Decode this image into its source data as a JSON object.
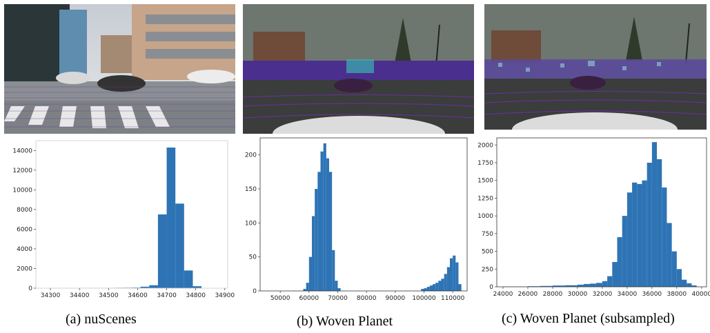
{
  "captions": {
    "a": "(a) nuScenes",
    "b": "(b) Woven Planet",
    "c": "(c) Woven Planet (subsampled)"
  },
  "colors": {
    "bar": "#2e74b5",
    "axis": "#333333"
  },
  "chart_data": [
    {
      "type": "bar",
      "panel": "a",
      "title": "",
      "xlabel": "",
      "ylabel": "",
      "xlim": [
        34250,
        34910
      ],
      "ylim": [
        0,
        15000
      ],
      "xticks": [
        34300,
        34400,
        34500,
        34600,
        34700,
        34800,
        34900
      ],
      "yticks": [
        0,
        2000,
        4000,
        6000,
        8000,
        10000,
        12000,
        14000
      ],
      "grid": false,
      "legend": "none",
      "bins": [
        {
          "x0": 34250,
          "x1": 34280,
          "y": 0
        },
        {
          "x0": 34280,
          "x1": 34310,
          "y": 5
        },
        {
          "x0": 34310,
          "x1": 34340,
          "y": 5
        },
        {
          "x0": 34340,
          "x1": 34370,
          "y": 8
        },
        {
          "x0": 34370,
          "x1": 34400,
          "y": 8
        },
        {
          "x0": 34400,
          "x1": 34430,
          "y": 10
        },
        {
          "x0": 34430,
          "x1": 34460,
          "y": 15
        },
        {
          "x0": 34460,
          "x1": 34490,
          "y": 20
        },
        {
          "x0": 34490,
          "x1": 34520,
          "y": 25
        },
        {
          "x0": 34520,
          "x1": 34550,
          "y": 40
        },
        {
          "x0": 34550,
          "x1": 34580,
          "y": 50
        },
        {
          "x0": 34580,
          "x1": 34610,
          "y": 60
        },
        {
          "x0": 34610,
          "x1": 34640,
          "y": 150
        },
        {
          "x0": 34640,
          "x1": 34670,
          "y": 300
        },
        {
          "x0": 34670,
          "x1": 34700,
          "y": 7500
        },
        {
          "x0": 34700,
          "x1": 34730,
          "y": 14300
        },
        {
          "x0": 34730,
          "x1": 34760,
          "y": 8600
        },
        {
          "x0": 34760,
          "x1": 34790,
          "y": 1800
        },
        {
          "x0": 34790,
          "x1": 34820,
          "y": 200
        },
        {
          "x0": 34820,
          "x1": 34850,
          "y": 0
        }
      ]
    },
    {
      "type": "bar",
      "panel": "b",
      "title": "",
      "xlabel": "",
      "ylabel": "",
      "xlim": [
        43000,
        115000
      ],
      "ylim": [
        0,
        225
      ],
      "xticks": [
        50000,
        60000,
        70000,
        80000,
        90000,
        100000,
        110000
      ],
      "yticks": [
        0,
        50,
        100,
        150,
        200
      ],
      "grid": false,
      "legend": "none",
      "bins": [
        {
          "x0": 58000,
          "x1": 59000,
          "y": 3
        },
        {
          "x0": 59000,
          "x1": 60000,
          "y": 12
        },
        {
          "x0": 60000,
          "x1": 61000,
          "y": 50
        },
        {
          "x0": 61000,
          "x1": 62000,
          "y": 110
        },
        {
          "x0": 62000,
          "x1": 63000,
          "y": 150
        },
        {
          "x0": 63000,
          "x1": 64000,
          "y": 175
        },
        {
          "x0": 64000,
          "x1": 65000,
          "y": 205
        },
        {
          "x0": 65000,
          "x1": 66000,
          "y": 217
        },
        {
          "x0": 66000,
          "x1": 67000,
          "y": 195
        },
        {
          "x0": 67000,
          "x1": 68000,
          "y": 175
        },
        {
          "x0": 68000,
          "x1": 69000,
          "y": 60
        },
        {
          "x0": 69000,
          "x1": 70000,
          "y": 15
        },
        {
          "x0": 70000,
          "x1": 71000,
          "y": 4
        },
        {
          "x0": 99000,
          "x1": 100000,
          "y": 3
        },
        {
          "x0": 100000,
          "x1": 101000,
          "y": 4
        },
        {
          "x0": 101000,
          "x1": 102000,
          "y": 6
        },
        {
          "x0": 102000,
          "x1": 103000,
          "y": 8
        },
        {
          "x0": 103000,
          "x1": 104000,
          "y": 10
        },
        {
          "x0": 104000,
          "x1": 105000,
          "y": 12
        },
        {
          "x0": 105000,
          "x1": 106000,
          "y": 15
        },
        {
          "x0": 106000,
          "x1": 107000,
          "y": 18
        },
        {
          "x0": 107000,
          "x1": 108000,
          "y": 25
        },
        {
          "x0": 108000,
          "x1": 109000,
          "y": 35
        },
        {
          "x0": 109000,
          "x1": 110000,
          "y": 48
        },
        {
          "x0": 110000,
          "x1": 111000,
          "y": 52
        },
        {
          "x0": 111000,
          "x1": 112000,
          "y": 42
        },
        {
          "x0": 112000,
          "x1": 113000,
          "y": 10
        }
      ]
    },
    {
      "type": "bar",
      "panel": "c",
      "title": "",
      "xlabel": "",
      "ylabel": "",
      "xlim": [
        23500,
        40400
      ],
      "ylim": [
        0,
        2100
      ],
      "xticks": [
        24000,
        26000,
        28000,
        30000,
        32000,
        34000,
        36000,
        38000,
        40000
      ],
      "yticks": [
        0,
        250,
        500,
        750,
        1000,
        1250,
        1500,
        1750,
        2000
      ],
      "grid": false,
      "legend": "none",
      "bins": [
        {
          "x0": 24000,
          "x1": 26000,
          "y": 3
        },
        {
          "x0": 26000,
          "x1": 27000,
          "y": 8
        },
        {
          "x0": 27000,
          "x1": 28000,
          "y": 12
        },
        {
          "x0": 28000,
          "x1": 29000,
          "y": 18
        },
        {
          "x0": 29000,
          "x1": 30000,
          "y": 22
        },
        {
          "x0": 30000,
          "x1": 30500,
          "y": 30
        },
        {
          "x0": 30500,
          "x1": 31000,
          "y": 40
        },
        {
          "x0": 31000,
          "x1": 31500,
          "y": 45
        },
        {
          "x0": 31500,
          "x1": 32000,
          "y": 55
        },
        {
          "x0": 32000,
          "x1": 32400,
          "y": 80
        },
        {
          "x0": 32400,
          "x1": 32800,
          "y": 150
        },
        {
          "x0": 32800,
          "x1": 33200,
          "y": 350
        },
        {
          "x0": 33200,
          "x1": 33600,
          "y": 700
        },
        {
          "x0": 33600,
          "x1": 34000,
          "y": 1000
        },
        {
          "x0": 34000,
          "x1": 34400,
          "y": 1330
        },
        {
          "x0": 34400,
          "x1": 34800,
          "y": 1470
        },
        {
          "x0": 34800,
          "x1": 35200,
          "y": 1450
        },
        {
          "x0": 35200,
          "x1": 35600,
          "y": 1500
        },
        {
          "x0": 35600,
          "x1": 36000,
          "y": 1750
        },
        {
          "x0": 36000,
          "x1": 36400,
          "y": 2040
        },
        {
          "x0": 36400,
          "x1": 36800,
          "y": 1800
        },
        {
          "x0": 36800,
          "x1": 37200,
          "y": 1400
        },
        {
          "x0": 37200,
          "x1": 37600,
          "y": 900
        },
        {
          "x0": 37600,
          "x1": 38000,
          "y": 500
        },
        {
          "x0": 38000,
          "x1": 38400,
          "y": 250
        },
        {
          "x0": 38400,
          "x1": 38800,
          "y": 100
        },
        {
          "x0": 38800,
          "x1": 39200,
          "y": 50
        },
        {
          "x0": 39200,
          "x1": 39600,
          "y": 20
        }
      ]
    }
  ]
}
